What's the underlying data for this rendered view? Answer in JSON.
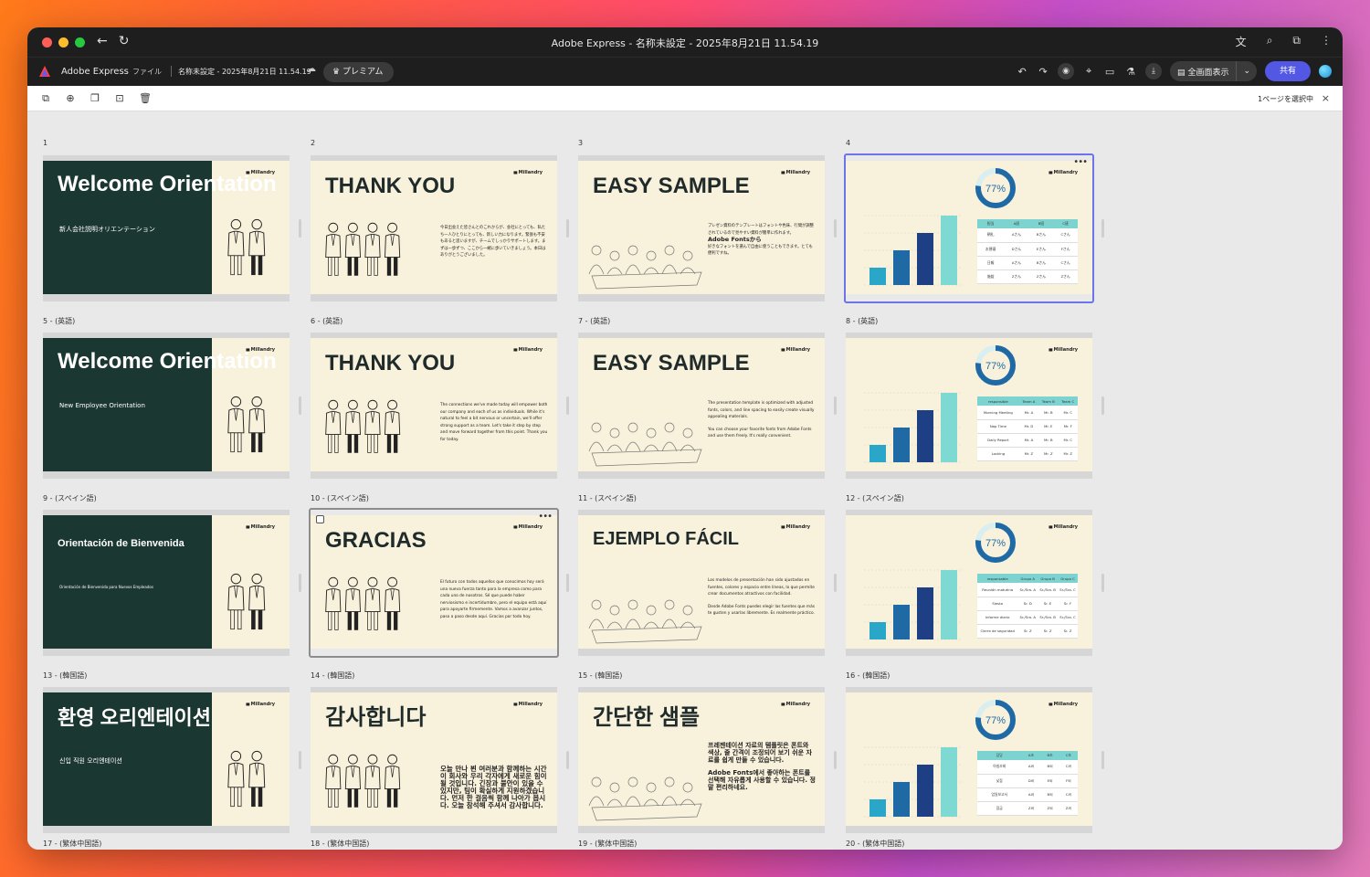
{
  "window": {
    "title": "Adobe Express - 名称未設定 - 2025年8月21日 11.54.19"
  },
  "appbar": {
    "brand": "Adobe Express",
    "file_menu": "ファイル",
    "doc_name": "名称未設定 - 2025年8月21日 11.54.19",
    "premium": "プレミアム",
    "fullscreen": "全画面表示",
    "share": "共有"
  },
  "toolbar": {
    "selection": "1ページを選択中"
  },
  "rows": [
    {
      "labels": [
        "1",
        "2",
        "3",
        "4"
      ],
      "titles": [
        "Welcome Orientation",
        "THANK YOU",
        "EASY SAMPLE"
      ],
      "sub": "新人会社説明オリエンテーション",
      "thank_body": "今日出会えた皆さんとのこれからが、会社にとっても、私たち一人ひとりにとっても、新しい力になります。緊張も不安もあると思いますが、チームでしっかりサポートします。まずは一歩ずつ、ここから一緒に歩いていきましょう。本日はありがとうございました。",
      "easy_body": "プレゼン資料のテンプレートはフォントや色味、行間が調整されているので見やすい資料が簡単に作れます。",
      "easy_bold": "Adobe Fontsから",
      "easy_tail": "好きなフォントを選んで自由に使うこともできます。とても便利ですね。",
      "table_head": [
        "担当",
        "A班",
        "B班",
        "C班"
      ],
      "table_rows": [
        [
          "朝礼",
          "Aさん",
          "Bさん",
          "Cさん"
        ],
        [
          "お昼寝",
          "Dさん",
          "Eさん",
          "Fさん"
        ],
        [
          "日報",
          "Aさん",
          "Bさん",
          "Cさん"
        ],
        [
          "施錠",
          "Zさん",
          "Zさん",
          "Zさん"
        ]
      ]
    },
    {
      "labels": [
        "5 - (英語)",
        "6 - (英語)",
        "7 - (英語)",
        "8 - (英語)"
      ],
      "titles": [
        "Welcome Orientation",
        "THANK YOU",
        "EASY SAMPLE"
      ],
      "sub": "New Employee Orientation",
      "thank_body": "The connections we've made today will empower both our company and each of us as individuals. While it's natural to feel a bit nervous or uncertain, we'll offer strong support as a team. Let's take it step by step and move forward together from this point. Thank you for today.",
      "easy_body": "The presentation template is optimized with adjusted fonts, colors, and line spacing to easily create visually appealing materials.",
      "easy_bold": "",
      "easy_tail": "You can choose your favorite fonts from Adobe Fonts and use them freely. It's really convenient.",
      "table_head": [
        "responsible",
        "Team A",
        "Team B",
        "Team C"
      ],
      "table_rows": [
        [
          "Morning Meeting",
          "Mr. A",
          "Mr. B",
          "Mr. C"
        ],
        [
          "Nap Time",
          "Mr. D",
          "Mr. E",
          "Mr. F"
        ],
        [
          "Daily Report",
          "Mr. A",
          "Mr. B",
          "Mr. C"
        ],
        [
          "Locking",
          "Mr. Z",
          "Mr. Z",
          "Mr. Z"
        ]
      ]
    },
    {
      "labels": [
        "9 - (スペイン語)",
        "10 - (スペイン語)",
        "11 - (スペイン語)",
        "12 - (スペイン語)"
      ],
      "titles": [
        "Orientación de Bienvenida",
        "GRACIAS",
        "EJEMPLO FÁCIL"
      ],
      "sub": "Orientación de Bienvenida para Nuevos Empleados",
      "thank_body": "El futuro con todos aquellos que conocimos hoy será una nueva fuerza tanto para la empresa como para cada uno de nosotros. Sé que puede haber nerviosismo e incertidumbre, pero el equipo está aquí para apoyarte firmemente. Vamos a avanzar juntos, paso a paso desde aquí. Gracias por todo hoy.",
      "easy_body": "Los modelos de presentación han sido ajustados en fuentes, colores y espacio entre líneas, lo que permite crear documentos atractivos con facilidad.",
      "easy_bold": "",
      "easy_tail": "Desde Adobe Fonts puedes elegir las fuentes que más te gusten y usarlas libremente. Es realmente práctico.",
      "table_head": [
        "responsable",
        "Grupo A",
        "Grupo B",
        "Grupo C"
      ],
      "table_rows": [
        [
          "Reunión matutina",
          "Sr./Sra. A",
          "Sr./Sra. B",
          "Sr./Sra. C"
        ],
        [
          "Siesta",
          "Sr. D",
          "Sr. E",
          "Sr. F"
        ],
        [
          "Informe diario",
          "Sr./Sra. A",
          "Sr./Sra. B",
          "Sr./Sra. C"
        ],
        [
          "Cierre de seguridad",
          "Sr. Z",
          "Sr. Z",
          "Sr. Z"
        ]
      ]
    },
    {
      "labels": [
        "13 - (韓国語)",
        "14 - (韓国語)",
        "15 - (韓国語)",
        "16 - (韓国語)"
      ],
      "titles": [
        "환영 오리엔테이션",
        "감사합니다",
        "간단한 샘플"
      ],
      "sub": "신입 직원 오리엔테이션",
      "thank_body": "오늘 만나 뵌 여러분과 함께하는 시간이 회사와 우리 각자에게 새로운 힘이 될 것입니다. 긴장과 불안이 있을 수 있지만, 팀이 확실하게 지원하겠습니다. 먼저 한 걸음씩 함께 나아가 봅시다. 오늘 참석해 주셔서 감사합니다.",
      "easy_body": "프레젠테이션 자료의 템플릿은 폰트와 색상, 줄 간격이 조정되어 보기 쉬운 자료를 쉽게 만들 수 있습니다.",
      "easy_bold": "",
      "easy_tail": "Adobe Fonts에서 좋아하는 폰트를 선택해 자유롭게 사용할 수 있습니다. 정말 편리하네요.",
      "table_head": [
        "담당",
        "A조",
        "B조",
        "C조"
      ],
      "table_rows": [
        [
          "아침조회",
          "A씨",
          "B씨",
          "C씨"
        ],
        [
          "낮잠",
          "D씨",
          "E씨",
          "F씨"
        ],
        [
          "업일보고서",
          "A씨",
          "B씨",
          "C씨"
        ],
        [
          "잠금",
          "Z씨",
          "Z씨",
          "Z씨"
        ]
      ]
    }
  ],
  "bottom_labels": [
    "17 - (繁体中国語)",
    "18 - (繁体中国語)",
    "19 - (繁体中国語)",
    "20 - (繁体中国語)"
  ],
  "brand_mini": "Millandry",
  "donut": {
    "value": 77,
    "label": "77%"
  },
  "chart_data": {
    "type": "bar",
    "values": [
      10,
      20,
      30,
      40
    ],
    "ylim": [
      0,
      40
    ],
    "colors": [
      "#2aa6c9",
      "#1f6aa5",
      "#1e3f84",
      "#7dd9d2"
    ]
  },
  "colors": {
    "accent": "#5258e4",
    "dark_panel": "#1b3731",
    "slide_bg": "#f8f1dc"
  }
}
